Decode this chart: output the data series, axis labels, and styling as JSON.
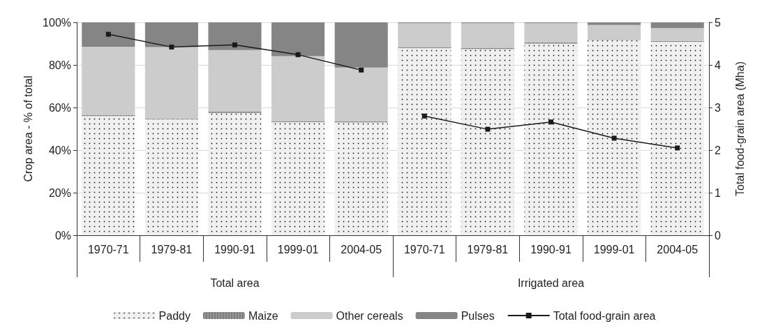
{
  "chart_data": {
    "type": "bar",
    "stacked": true,
    "ylabel": "Crop area - % of total",
    "y2label": "Total food-grain area (Mha)",
    "categories": [
      "1970-71",
      "1979-81",
      "1990-91",
      "1999-01",
      "2004-05",
      "1970-71",
      "1979-81",
      "1990-91",
      "1999-01",
      "2004-05"
    ],
    "annotations": [
      "Total area",
      "Irrigated area"
    ],
    "series": [
      {
        "name": "Paddy",
        "color": "#f0f0f0",
        "values": [
          56,
          54.5,
          57.5,
          53.1,
          53,
          87.9,
          87.5,
          90,
          91.7,
          90.8
        ]
      },
      {
        "name": "Maize",
        "color": "#999999",
        "values": [
          0.5,
          0.3,
          0.5,
          0.5,
          0.5,
          0.5,
          0.5,
          0.5,
          0.3,
          0.4
        ]
      },
      {
        "name": "Other cereals",
        "color": "#cccccc",
        "values": [
          32,
          33.6,
          29,
          30.5,
          25.3,
          11.2,
          11.6,
          9.1,
          6.8,
          6.1
        ]
      },
      {
        "name": "Pulses",
        "color": "#858585",
        "values": [
          11.5,
          11.6,
          13,
          15.9,
          21.2,
          0.4,
          0.4,
          0.4,
          1.2,
          2.7
        ]
      },
      {
        "name": "Total food-grain area",
        "type": "line",
        "axis": "y2",
        "color": "#1a1a1a",
        "marker": "square",
        "values": [
          4.72,
          4.42,
          4.47,
          4.24,
          3.88,
          null,
          null,
          null,
          null,
          null
        ]
      },
      {
        "type": "line",
        "axis": "y2",
        "color": "#1a1a1a",
        "marker": "square",
        "values": [
          null,
          null,
          null,
          null,
          null,
          2.8,
          2.49,
          2.66,
          2.28,
          2.05
        ]
      }
    ],
    "ylim": [
      0,
      100
    ],
    "yticks": [
      {
        "value": 0,
        "label": "0%"
      },
      {
        "value": 20,
        "label": "20%"
      },
      {
        "value": 40,
        "label": "40%"
      },
      {
        "value": 60,
        "label": "60%"
      },
      {
        "value": 80,
        "label": "80%"
      },
      {
        "value": 100,
        "label": "100%"
      }
    ],
    "y2lim": [
      0,
      5
    ],
    "y2ticks": [
      0,
      1,
      2,
      3,
      4,
      5
    ],
    "grid": "y",
    "legend": "bottom"
  }
}
